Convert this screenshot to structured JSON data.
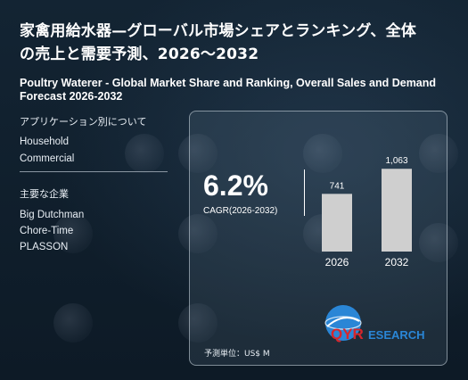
{
  "title_jp_line1": "家禽用給水器—グローバル市場シェアとランキング、全体",
  "title_jp_line2": "の売上と需要予測、2026〜2032",
  "title_en": "Poultry Waterer - Global Market Share and Ranking, Overall Sales and Demand Forecast 2026-2032",
  "applications": {
    "heading": "アプリケーション別について",
    "items": [
      "Household",
      "Commercial"
    ]
  },
  "companies": {
    "heading": "主要な企業",
    "items": [
      "Big Dutchman",
      "Chore-Time",
      "PLASSON"
    ]
  },
  "cagr": {
    "value": "6.2%",
    "label": "CAGR(2026-2032)"
  },
  "unit_label": "予測単位：US$ M",
  "logo": {
    "text_qyr": "QYR",
    "text_research": "ESEARCH"
  },
  "colors": {
    "background": "#0f1d2a",
    "bar": "#cfcfcf",
    "accent_blue": "#2a86d6",
    "accent_red": "#d7262b"
  },
  "chart_data": {
    "type": "bar",
    "categories": [
      "2026",
      "2032"
    ],
    "values": [
      741,
      1063
    ],
    "value_labels": [
      "741",
      "1,063"
    ],
    "title": "",
    "xlabel": "",
    "ylabel": "",
    "ylim": [
      0,
      1100
    ]
  }
}
